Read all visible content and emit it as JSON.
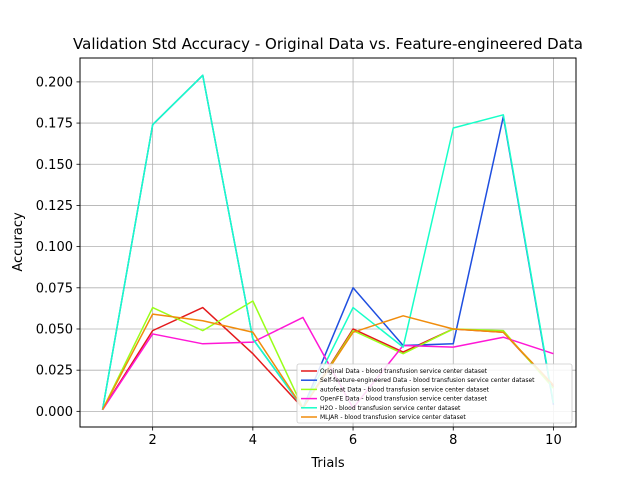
{
  "chart_data": {
    "type": "line",
    "title": "Validation Std Accuracy - Original Data vs. Feature-engineered Data",
    "xlabel": "Trials",
    "ylabel": "Accuracy",
    "x": [
      1,
      2,
      3,
      4,
      5,
      6,
      7,
      8,
      9,
      10
    ],
    "xlim": [
      0.55,
      10.45
    ],
    "ylim": [
      -0.0095,
      0.2145
    ],
    "xticks": [
      2,
      4,
      6,
      8,
      10
    ],
    "xtick_labels": [
      "2",
      "4",
      "6",
      "8",
      "10"
    ],
    "yticks": [
      0.0,
      0.025,
      0.05,
      0.075,
      0.1,
      0.125,
      0.15,
      0.175,
      0.2
    ],
    "ytick_labels": [
      "0.000",
      "0.025",
      "0.050",
      "0.075",
      "0.100",
      "0.125",
      "0.150",
      "0.175",
      "0.200"
    ],
    "grid": true,
    "legend_position": "lower-right",
    "series": [
      {
        "name": "Original Data - blood transfusion service center dataset",
        "color": "#e41a1c",
        "values": [
          0.001,
          0.049,
          0.063,
          0.035,
          0.002,
          0.05,
          0.036,
          0.05,
          0.048,
          0.015
        ]
      },
      {
        "name": "Self-feature-engineered Data - blood transfusion service center dataset",
        "color": "#1f4fe0",
        "values": [
          0.001,
          0.174,
          0.204,
          0.044,
          0.002,
          0.075,
          0.04,
          0.041,
          0.179,
          0.004
        ]
      },
      {
        "name": "autofeat Data - blood transfusion service center dataset",
        "color": "#99ff1a",
        "values": [
          0.001,
          0.063,
          0.049,
          0.067,
          0.002,
          0.049,
          0.035,
          0.05,
          0.049,
          0.014
        ]
      },
      {
        "name": "OpenFE Data - blood transfusion service center dataset",
        "color": "#ff17d6",
        "values": [
          0.001,
          0.047,
          0.041,
          0.042,
          0.057,
          0.002,
          0.04,
          0.039,
          0.045,
          0.035
        ]
      },
      {
        "name": "H2O - blood transfusion service center dataset",
        "color": "#17ffc8",
        "values": [
          0.001,
          0.174,
          0.204,
          0.044,
          0.002,
          0.063,
          0.039,
          0.172,
          0.18,
          0.005
        ]
      },
      {
        "name": "MLJAR - blood transfusion service center dataset",
        "color": "#f08c0c",
        "values": [
          0.001,
          0.059,
          0.055,
          0.048,
          0.002,
          0.048,
          0.058,
          0.05,
          0.048,
          0.016
        ]
      }
    ]
  }
}
